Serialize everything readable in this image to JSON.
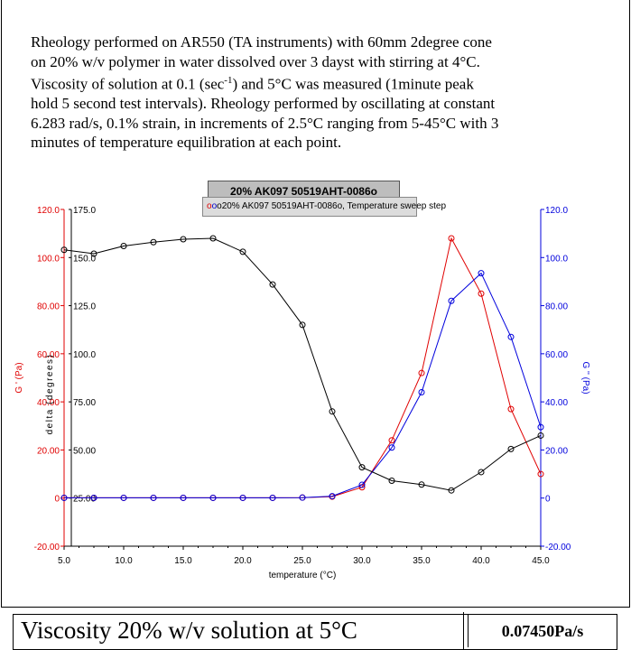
{
  "description": {
    "line1": "Rheology performed on AR550 (TA instruments) with 60mm 2degree cone",
    "line2": "on 20% w/v polymer in water dissolved over 3 dayst with stirring at 4°C.",
    "line3_pre": "Viscosity of solution at 0.1 (sec",
    "line3_sup": "-1",
    "line3_post": ") and 5°C was measured (1minute peak",
    "line4": "hold 5 second test intervals). Rheology performed by oscillating at constant",
    "line5": "6.283 rad/s, 0.1% strain, in increments of 2.5°C ranging from 5-45°C with 3",
    "line6": "minutes of temperature equilibration at each point."
  },
  "viscosity": {
    "label": "Viscosity 20% w/v solution at 5°C",
    "value": "0.07450Pa/s"
  },
  "colors": {
    "g_prime": "#e00000",
    "g_double_prime": "#0000dd",
    "delta": "#000000"
  },
  "chart_data": {
    "type": "line",
    "title": "20% AK097 50519AHT-0086o",
    "legend": {
      "text": "20% AK097 50519AHT-0086o, Temperature sweep step",
      "placement": "top-center"
    },
    "xlabel": "temperature (°C)",
    "xlim": [
      5.0,
      45.0
    ],
    "x_ticks": [
      "5.0",
      "10.0",
      "15.0",
      "20.0",
      "25.0",
      "30.0",
      "35.0",
      "40.0",
      "45.0"
    ],
    "axes": {
      "left_outer": {
        "label": "G ' (Pa)",
        "lim": [
          -20,
          120
        ],
        "ticks": [
          "-20.00",
          "0",
          "20.00",
          "40.00",
          "60.00",
          "80.00",
          "100.0",
          "120.0"
        ]
      },
      "left_inner": {
        "label": "delta (degrees)",
        "lim": [
          0,
          175
        ],
        "ticks": [
          "25.00",
          "50.00",
          "75.00",
          "100.0",
          "125.0",
          "150.0",
          "175.0"
        ]
      },
      "right": {
        "label": "G '' (Pa)",
        "lim": [
          -20,
          120
        ],
        "ticks": [
          "-20.00",
          "0",
          "20.00",
          "40.00",
          "60.00",
          "80.00",
          "100.0",
          "120.0"
        ]
      }
    },
    "grid": false,
    "x": [
      5.0,
      7.5,
      10.0,
      12.5,
      15.0,
      17.5,
      20.0,
      22.5,
      25.0,
      27.5,
      30.0,
      32.5,
      35.0,
      37.5,
      40.0,
      42.5,
      45.0
    ],
    "series": [
      {
        "name": "G '",
        "axis": "left_outer",
        "values": [
          0.1,
          0.1,
          0.1,
          0.1,
          0.1,
          0.1,
          0.1,
          0.1,
          0.2,
          0.6,
          4.5,
          24.0,
          52.0,
          108.0,
          85.0,
          37.0,
          10.0
        ]
      },
      {
        "name": "G ''",
        "axis": "right",
        "values": [
          0.1,
          0.1,
          0.1,
          0.1,
          0.1,
          0.1,
          0.1,
          0.1,
          0.2,
          0.8,
          5.5,
          21.0,
          44.0,
          82.0,
          93.5,
          67.0,
          29.5
        ]
      },
      {
        "name": "delta",
        "axis": "left_inner",
        "values": [
          154.0,
          152.0,
          156.0,
          158.0,
          159.5,
          160.0,
          153.0,
          136.0,
          115.0,
          70.0,
          41.0,
          34.0,
          32.0,
          29.0,
          38.5,
          50.5,
          57.5
        ]
      }
    ]
  }
}
